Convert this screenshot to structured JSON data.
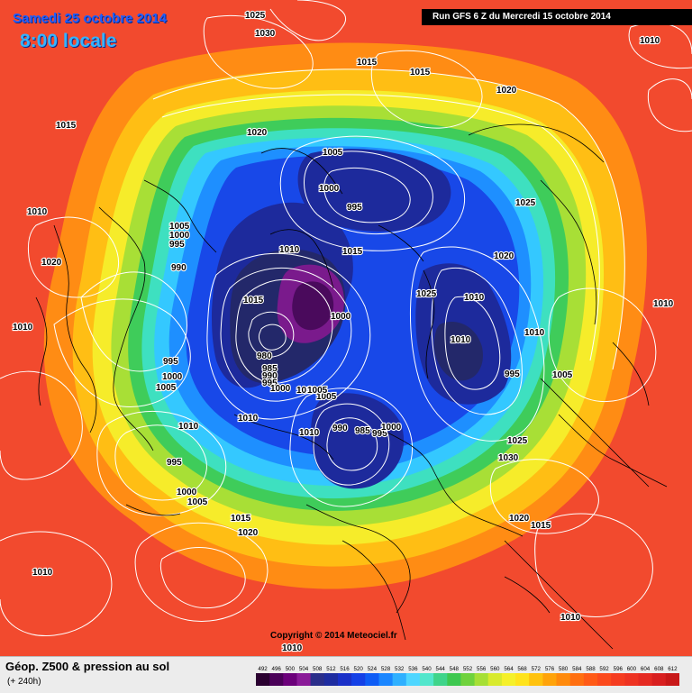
{
  "header": {
    "date": "Samedi 25 octobre 2014",
    "local_time": "8:00 locale",
    "run": "Run GFS 6 Z du Mercredi 15 octobre 2014"
  },
  "copyright": "Copyright © 2014 Meteociel.fr",
  "footer": {
    "title": "Géop. Z500 & pression au sol",
    "subtitle": "(+ 240h)"
  },
  "scale": {
    "ticks": [
      "492",
      "496",
      "500",
      "504",
      "508",
      "512",
      "516",
      "520",
      "524",
      "528",
      "532",
      "536",
      "540",
      "544",
      "548",
      "552",
      "556",
      "560",
      "564",
      "568",
      "572",
      "576",
      "580",
      "584",
      "588",
      "592",
      "596",
      "600",
      "604",
      "608",
      "612"
    ],
    "colors": [
      "#2a0030",
      "#4a0058",
      "#6b007a",
      "#8a1a98",
      "#2a2e8a",
      "#1e2ca0",
      "#1a30c8",
      "#1440e6",
      "#0e5cf5",
      "#1a86ff",
      "#2fb0ff",
      "#4fd6ff",
      "#52e6cc",
      "#3fd48a",
      "#3ec850",
      "#6fd23c",
      "#a6df35",
      "#d8ea2e",
      "#f5f02a",
      "#ffe31c",
      "#ffc20e",
      "#ffa30a",
      "#ff8a0c",
      "#ff6f10",
      "#ff5a16",
      "#fb4a1c",
      "#f53c20",
      "#ee3322",
      "#e52a22",
      "#d81f1f",
      "#c81818"
    ]
  },
  "map_colors": {
    "outer": "#f24a2e",
    "orange": "#ff8c14",
    "amber": "#ffbe14",
    "yellow": "#f6ec2a",
    "lime": "#a8df36",
    "green": "#3fcc5a",
    "teal": "#3ee0c0",
    "cyan": "#34c8ff",
    "light_blue": "#1e8fff",
    "blue": "#1848e8",
    "navy": "#1d2a9c",
    "dark_navy": "#23286a",
    "purple": "#7a1a8c",
    "deep_purple": "#4a0a5c"
  },
  "isobar_labels": [
    {
      "id": "t1025",
      "text": "1025"
    },
    {
      "id": "t1030",
      "text": "1030"
    },
    {
      "id": "t1015a",
      "text": "1015"
    },
    {
      "id": "t1015b",
      "text": "1015"
    },
    {
      "id": "t1020a",
      "text": "1020"
    },
    {
      "id": "t1010a",
      "text": "1010"
    },
    {
      "id": "t1015c",
      "text": "1015"
    },
    {
      "id": "t1020b",
      "text": "1020"
    },
    {
      "id": "t1005a",
      "text": "1005"
    },
    {
      "id": "t1000a",
      "text": "1000"
    },
    {
      "id": "t995a",
      "text": "995"
    },
    {
      "id": "t1025b",
      "text": "1025"
    },
    {
      "id": "t1010b",
      "text": "1010"
    },
    {
      "id": "t1005b",
      "text": "1005"
    },
    {
      "id": "t1000b",
      "text": "1000"
    },
    {
      "id": "t995b",
      "text": "995"
    },
    {
      "id": "t990a",
      "text": "990"
    },
    {
      "id": "t1020c",
      "text": "1020"
    },
    {
      "id": "t1010c",
      "text": "1010"
    },
    {
      "id": "t1015d",
      "text": "1015"
    },
    {
      "id": "t1020d",
      "text": "1020"
    },
    {
      "id": "t1015e",
      "text": "1015"
    },
    {
      "id": "t1000c",
      "text": "1000"
    },
    {
      "id": "t1025c",
      "text": "1025"
    },
    {
      "id": "t1010d",
      "text": "1010"
    },
    {
      "id": "t1010e",
      "text": "1010"
    },
    {
      "id": "t1010f",
      "text": "1010"
    },
    {
      "id": "t980",
      "text": "980"
    },
    {
      "id": "t985a",
      "text": "985"
    },
    {
      "id": "t990b",
      "text": "990"
    },
    {
      "id": "t995c",
      "text": "995"
    },
    {
      "id": "t1000d",
      "text": "1000"
    },
    {
      "id": "t1005c",
      "text": "1005"
    },
    {
      "id": "t1010g",
      "text": "1010"
    },
    {
      "id": "t1010h",
      "text": "1010"
    },
    {
      "id": "t1005d",
      "text": "1005"
    },
    {
      "id": "t1010i",
      "text": "1010"
    },
    {
      "id": "t995d",
      "text": "995"
    },
    {
      "id": "t1000e",
      "text": "1000"
    },
    {
      "id": "t1005e",
      "text": "1005"
    },
    {
      "id": "t990c",
      "text": "990"
    },
    {
      "id": "t985b",
      "text": "985"
    },
    {
      "id": "t995e",
      "text": "995"
    },
    {
      "id": "t1000f",
      "text": "1000"
    },
    {
      "id": "t1010j",
      "text": "1010"
    },
    {
      "id": "t1010k",
      "text": "1010"
    },
    {
      "id": "t1010l",
      "text": "1010"
    },
    {
      "id": "t995f",
      "text": "995"
    },
    {
      "id": "t1005f",
      "text": "1005"
    },
    {
      "id": "t1025d",
      "text": "1025"
    },
    {
      "id": "t1030b",
      "text": "1030"
    },
    {
      "id": "t995g",
      "text": "995"
    },
    {
      "id": "t1000g",
      "text": "1000"
    },
    {
      "id": "t1005g",
      "text": "1005"
    },
    {
      "id": "t1015f",
      "text": "1015"
    },
    {
      "id": "t1020e",
      "text": "1020"
    },
    {
      "id": "t1010m",
      "text": "1010"
    },
    {
      "id": "t1020f",
      "text": "1020"
    },
    {
      "id": "t1015g",
      "text": "1015"
    },
    {
      "id": "t1010n",
      "text": "1010"
    },
    {
      "id": "t1010o",
      "text": "1010"
    }
  ]
}
